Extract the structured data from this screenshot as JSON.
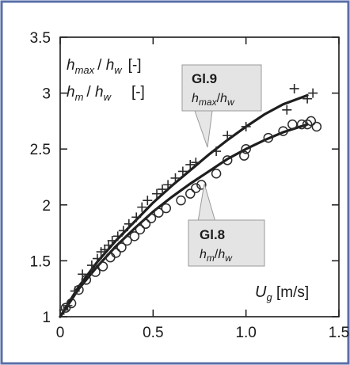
{
  "chart_data": {
    "type": "scatter",
    "xlim": [
      0,
      1.5
    ],
    "ylim": [
      1,
      3.5
    ],
    "x_ticks": [
      0,
      0.5,
      1.0,
      1.5
    ],
    "x_tick_labels": [
      "0",
      "0.5",
      "1.0",
      "1.5"
    ],
    "y_ticks": [
      1,
      1.5,
      2,
      2.5,
      3,
      3.5
    ],
    "y_tick_labels": [
      "1",
      "1.5",
      "2",
      "2.5",
      "3",
      "3.5"
    ],
    "x_axis_label": {
      "var": "U",
      "sub": "g",
      "unit": " [m/s]"
    },
    "legend": [
      {
        "num": "h",
        "num_sub": "max",
        "den": "h",
        "den_sub": "w",
        "unit": "[-]",
        "marker": "plus"
      },
      {
        "num": "h",
        "num_sub": "m",
        "den": "h",
        "den_sub": "w",
        "unit": "[-]",
        "marker": "circle"
      }
    ],
    "callouts": [
      {
        "eq": "Gl.9",
        "num": "h",
        "num_sub": "max",
        "den": "h",
        "den_sub": "w"
      },
      {
        "eq": "Gl.8",
        "num": "h",
        "num_sub": "m",
        "den": "h",
        "den_sub": "w"
      }
    ],
    "grid": false,
    "series": [
      {
        "marker": "plus",
        "points": [
          [
            0.02,
            1.06
          ],
          [
            0.04,
            1.1
          ],
          [
            0.08,
            1.23
          ],
          [
            0.12,
            1.38
          ],
          [
            0.17,
            1.46
          ],
          [
            0.2,
            1.52
          ],
          [
            0.22,
            1.58
          ],
          [
            0.24,
            1.6
          ],
          [
            0.26,
            1.64
          ],
          [
            0.28,
            1.68
          ],
          [
            0.31,
            1.72
          ],
          [
            0.34,
            1.77
          ],
          [
            0.37,
            1.83
          ],
          [
            0.41,
            1.89
          ],
          [
            0.44,
            1.98
          ],
          [
            0.47,
            2.04
          ],
          [
            0.52,
            2.1
          ],
          [
            0.55,
            2.14
          ],
          [
            0.58,
            2.18
          ],
          [
            0.62,
            2.24
          ],
          [
            0.66,
            2.3
          ],
          [
            0.7,
            2.36
          ],
          [
            0.73,
            2.38
          ],
          [
            0.84,
            2.48
          ],
          [
            0.9,
            2.62
          ],
          [
            1.0,
            2.7
          ],
          [
            1.22,
            2.85
          ],
          [
            1.26,
            3.04
          ],
          [
            1.33,
            2.95
          ],
          [
            1.36,
            3.0
          ]
        ]
      },
      {
        "marker": "circle",
        "points": [
          [
            0.03,
            1.08
          ],
          [
            0.06,
            1.12
          ],
          [
            0.1,
            1.24
          ],
          [
            0.14,
            1.33
          ],
          [
            0.19,
            1.4
          ],
          [
            0.23,
            1.45
          ],
          [
            0.27,
            1.53
          ],
          [
            0.3,
            1.57
          ],
          [
            0.33,
            1.62
          ],
          [
            0.36,
            1.68
          ],
          [
            0.4,
            1.72
          ],
          [
            0.43,
            1.78
          ],
          [
            0.46,
            1.83
          ],
          [
            0.49,
            1.88
          ],
          [
            0.53,
            1.93
          ],
          [
            0.57,
            1.97
          ],
          [
            0.65,
            2.04
          ],
          [
            0.7,
            2.1
          ],
          [
            0.73,
            2.15
          ],
          [
            0.76,
            2.18
          ],
          [
            0.84,
            2.28
          ],
          [
            0.9,
            2.4
          ],
          [
            0.99,
            2.44
          ],
          [
            1.0,
            2.5
          ],
          [
            1.12,
            2.6
          ],
          [
            1.2,
            2.66
          ],
          [
            1.25,
            2.72
          ],
          [
            1.3,
            2.72
          ],
          [
            1.33,
            2.72
          ],
          [
            1.35,
            2.75
          ],
          [
            1.38,
            2.7
          ]
        ]
      }
    ],
    "fit_lines": [
      {
        "x": [
          0,
          0.1,
          0.2,
          0.3,
          0.4,
          0.5,
          0.6,
          0.7,
          0.8,
          0.9,
          1.0,
          1.1,
          1.2,
          1.33
        ],
        "y": [
          1.0,
          1.27,
          1.49,
          1.68,
          1.85,
          2.02,
          2.17,
          2.31,
          2.45,
          2.58,
          2.7,
          2.81,
          2.9,
          2.98
        ]
      },
      {
        "x": [
          0,
          0.1,
          0.2,
          0.3,
          0.4,
          0.5,
          0.6,
          0.7,
          0.8,
          0.9,
          1.0,
          1.1,
          1.2,
          1.33
        ],
        "y": [
          1.0,
          1.25,
          1.45,
          1.63,
          1.79,
          1.94,
          2.07,
          2.19,
          2.3,
          2.41,
          2.5,
          2.58,
          2.65,
          2.72
        ]
      }
    ]
  }
}
